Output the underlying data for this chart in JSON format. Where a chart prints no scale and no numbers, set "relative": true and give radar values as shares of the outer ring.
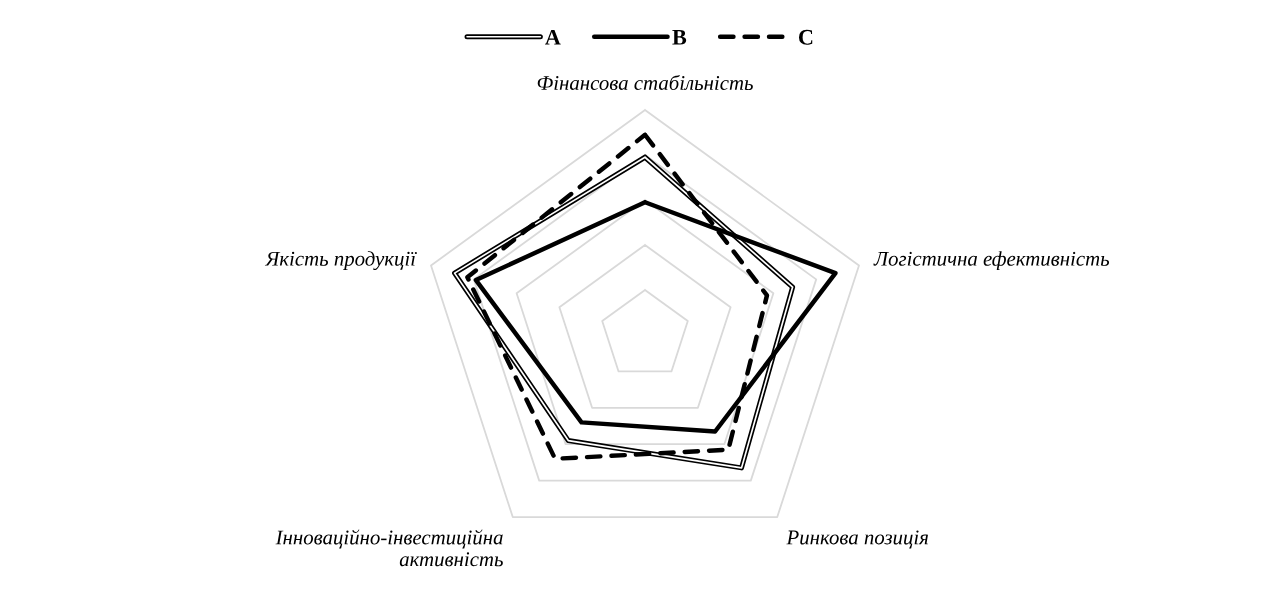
{
  "chart_data": {
    "type": "radar",
    "relative": true,
    "grid": true,
    "legend": "top",
    "marker": "none",
    "categories": [
      "Фінансова стабільність",
      "Логістична ефективність",
      "Ринкова позиція",
      "Інноваційно-інвестиційна\nактивність",
      "Якість продукції"
    ],
    "series": [
      {
        "name": "A",
        "color": "#000000",
        "line_style": "double",
        "values": [
          0.79,
          0.69,
          0.73,
          0.58,
          0.89
        ]
      },
      {
        "name": "B",
        "color": "#000000",
        "line_style": "solid",
        "values": [
          0.59,
          0.89,
          0.53,
          0.48,
          0.79
        ]
      },
      {
        "name": "C",
        "color": "#000000",
        "line_style": "dashed",
        "values": [
          0.89,
          0.57,
          0.63,
          0.68,
          0.83
        ]
      }
    ]
  }
}
